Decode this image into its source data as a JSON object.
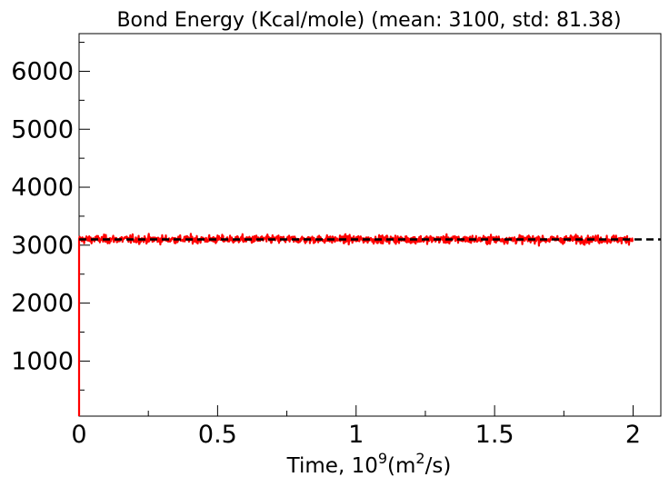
{
  "chart_data": {
    "type": "line",
    "title": "Bond Energy (Kcal/mole) (mean: 3100, std: 81.38)",
    "xlabel_main": "Time, 10",
    "xlabel_sup": "9",
    "xlabel_paren_open": "(m",
    "xlabel_sup2": "2",
    "xlabel_paren_close": "/s)",
    "ylabel": "",
    "xlim": [
      0,
      2.1
    ],
    "ylim": [
      50,
      6650
    ],
    "x_major_ticks": [
      0,
      0.5,
      1,
      1.5,
      2
    ],
    "x_tick_labels": [
      "0",
      "0.5",
      "1",
      "1.5",
      "2"
    ],
    "x_minor_ticks": [
      0.25,
      0.75,
      1.25,
      1.75
    ],
    "y_major_ticks": [
      1000,
      2000,
      3000,
      4000,
      5000,
      6000
    ],
    "y_tick_labels": [
      "1000",
      "2000",
      "3000",
      "4000",
      "5000",
      "6000"
    ],
    "y_minor_ticks": [
      500,
      1500,
      2500,
      3500,
      4500,
      5500,
      6500
    ],
    "grid": false,
    "series": [
      {
        "color": "#ff0000",
        "style": "solid",
        "x_start": 0,
        "x_end": 2,
        "initial_min": 50,
        "mean": 3100,
        "std": 81.38
      }
    ],
    "reference_line": {
      "y": 3100,
      "color": "#000000",
      "style": "dashed",
      "x_start": 0,
      "x_end": 2.1
    }
  }
}
